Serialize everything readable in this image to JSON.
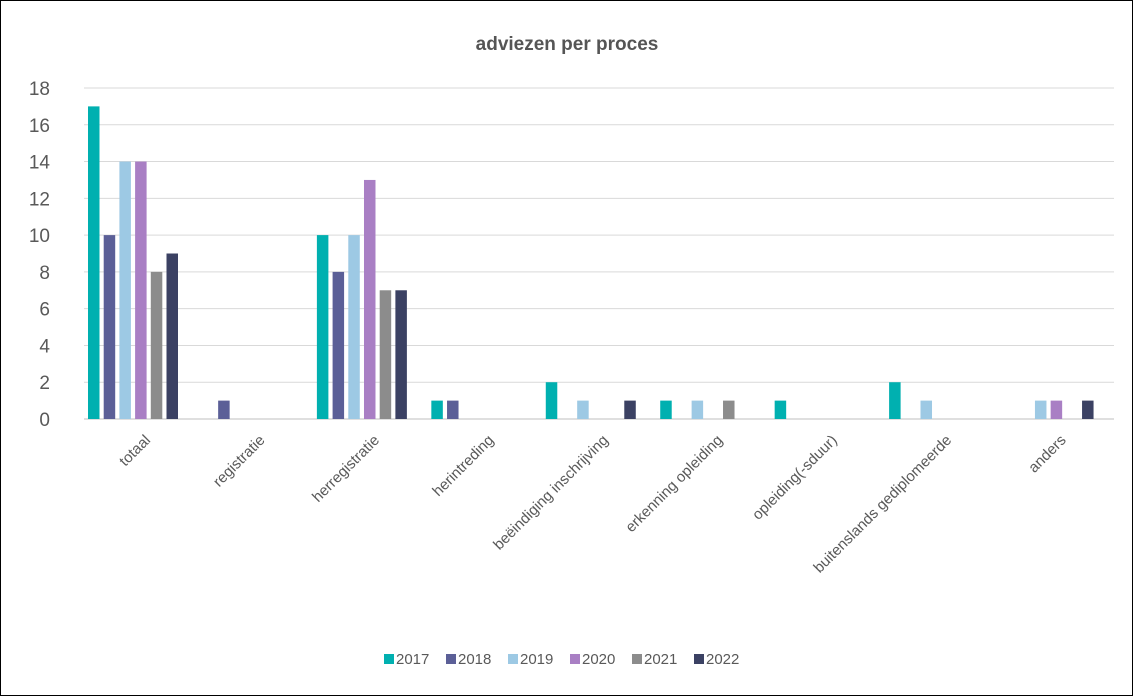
{
  "chart_data": {
    "type": "bar",
    "title": "adviezen per proces",
    "xlabel": "",
    "ylabel": "",
    "ylim": [
      0,
      18
    ],
    "yticks": [
      0,
      2,
      4,
      6,
      8,
      10,
      12,
      14,
      16,
      18
    ],
    "grid": true,
    "legend_position": "bottom",
    "categories": [
      "totaal",
      "registratie",
      "herregistratie",
      "herintreding",
      "beëindiging inschrijving",
      "erkenning opleiding",
      "opleiding(-sduur)",
      "buitenslands gediplomeerde",
      "anders"
    ],
    "series": [
      {
        "name": "2017",
        "color": "#00B0B0",
        "values": [
          17,
          0,
          10,
          1,
          2,
          1,
          1,
          2,
          0
        ]
      },
      {
        "name": "2018",
        "color": "#5B5F97",
        "values": [
          10,
          1,
          8,
          1,
          0,
          0,
          0,
          0,
          0
        ]
      },
      {
        "name": "2019",
        "color": "#9DC9E4",
        "values": [
          14,
          0,
          10,
          0,
          1,
          1,
          0,
          1,
          1
        ]
      },
      {
        "name": "2020",
        "color": "#A97FC4",
        "values": [
          14,
          0,
          13,
          0,
          0,
          0,
          0,
          0,
          1
        ]
      },
      {
        "name": "2021",
        "color": "#8C8C8C",
        "values": [
          8,
          0,
          7,
          0,
          0,
          1,
          0,
          0,
          0
        ]
      },
      {
        "name": "2022",
        "color": "#3B4163",
        "values": [
          9,
          0,
          7,
          0,
          1,
          0,
          0,
          0,
          1
        ]
      }
    ]
  }
}
